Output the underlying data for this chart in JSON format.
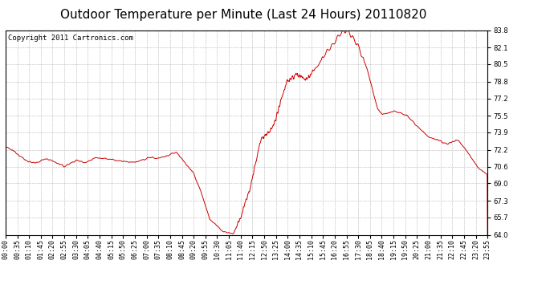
{
  "title": "Outdoor Temperature per Minute (Last 24 Hours) 20110820",
  "copyright_text": "Copyright 2011 Cartronics.com",
  "line_color": "#cc0000",
  "background_color": "#ffffff",
  "grid_color": "#b0b0b0",
  "ylim": [
    64.0,
    83.8
  ],
  "yticks": [
    64.0,
    65.7,
    67.3,
    69.0,
    70.6,
    72.2,
    73.9,
    75.5,
    77.2,
    78.8,
    80.5,
    82.1,
    83.8
  ],
  "xtick_labels": [
    "00:00",
    "00:35",
    "01:10",
    "01:45",
    "02:20",
    "02:55",
    "03:30",
    "04:05",
    "04:40",
    "05:15",
    "05:50",
    "06:25",
    "07:00",
    "07:35",
    "08:10",
    "08:45",
    "09:20",
    "09:55",
    "10:30",
    "11:05",
    "11:40",
    "12:15",
    "12:50",
    "13:25",
    "14:00",
    "14:35",
    "15:10",
    "15:45",
    "16:20",
    "16:55",
    "17:30",
    "18:05",
    "18:40",
    "19:15",
    "19:50",
    "20:25",
    "21:00",
    "21:35",
    "22:10",
    "22:45",
    "23:20",
    "23:55"
  ],
  "title_fontsize": 11,
  "axis_fontsize": 6,
  "copyright_fontsize": 6.5,
  "keypoints_t": [
    0,
    30,
    60,
    90,
    120,
    150,
    175,
    210,
    240,
    270,
    310,
    350,
    390,
    430,
    450,
    480,
    510,
    540,
    560,
    580,
    595,
    610,
    650,
    680,
    700,
    730,
    760,
    800,
    840,
    870,
    900,
    935,
    960,
    980,
    1000,
    1020,
    1050,
    1080,
    1110,
    1125,
    1140,
    1160,
    1180,
    1200,
    1230,
    1260,
    1300,
    1320,
    1350,
    1380,
    1410,
    1439
  ],
  "keypoints_v": [
    72.5,
    72.0,
    71.2,
    70.9,
    71.4,
    71.0,
    70.6,
    71.2,
    71.0,
    71.5,
    71.3,
    71.1,
    71.0,
    71.5,
    71.4,
    71.6,
    72.0,
    70.8,
    70.0,
    68.5,
    67.0,
    65.5,
    64.3,
    64.1,
    65.5,
    68.5,
    73.0,
    74.5,
    78.8,
    79.5,
    79.0,
    80.5,
    81.8,
    82.5,
    83.5,
    83.8,
    82.5,
    80.0,
    76.2,
    75.6,
    75.8,
    76.0,
    75.8,
    75.5,
    74.5,
    73.5,
    73.0,
    72.8,
    73.2,
    72.0,
    70.5,
    69.8
  ]
}
